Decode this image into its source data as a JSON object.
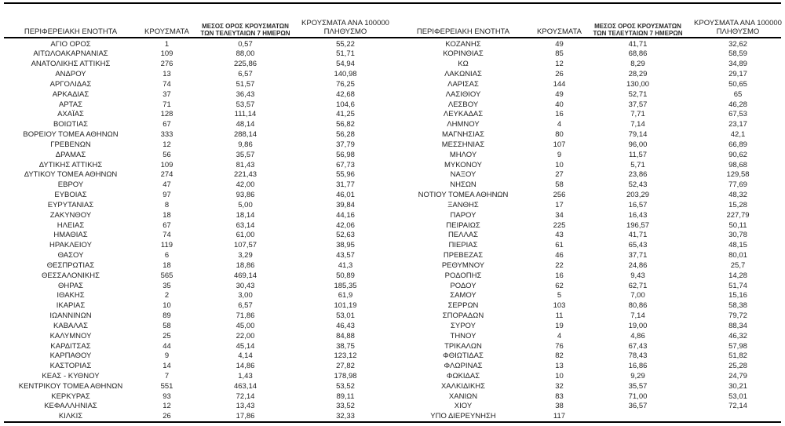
{
  "page": {
    "background": "#ffffff",
    "text_color": "#1f1f1f",
    "rule_color": "#000000"
  },
  "table_headers": {
    "region": "ΠΕΡΙΦΕΡΕΙΑΚΗ ΕΝΟΤΗΤΑ",
    "cases": "ΚΡΟΥΣΜΑΤΑ",
    "avg7_line1": "ΜΕΣΟΣ ΟΡΟΣ ΚΡΟΥΣΜΑΤΩΝ",
    "avg7_line2": "ΤΩΝ ΤΕΛΕΥΤΑΙΩΝ 7 ΗΜΕΡΩΝ",
    "per100k_line1": "ΚΡΟΥΣΜΑΤΑ ΑΝΑ 100000",
    "per100k_line2": "ΠΛΗΘΥΣΜΟ"
  },
  "left_table": {
    "rows": [
      [
        "ΑΓΙΟ ΟΡΟΣ",
        "1",
        "0,57",
        "55,22"
      ],
      [
        "ΑΙΤΩΛΟΑΚΑΡΝΑΝΙΑΣ",
        "109",
        "88,00",
        "51,71"
      ],
      [
        "ΑΝΑΤΟΛΙΚΗΣ ΑΤΤΙΚΗΣ",
        "276",
        "225,86",
        "54,94"
      ],
      [
        "ΑΝΔΡΟΥ",
        "13",
        "6,57",
        "140,98"
      ],
      [
        "ΑΡΓΟΛΙΔΑΣ",
        "74",
        "51,57",
        "76,25"
      ],
      [
        "ΑΡΚΑΔΙΑΣ",
        "37",
        "36,43",
        "42,68"
      ],
      [
        "ΑΡΤΑΣ",
        "71",
        "53,57",
        "104,6"
      ],
      [
        "ΑΧΑΪΑΣ",
        "128",
        "111,14",
        "41,25"
      ],
      [
        "ΒΟΙΩΤΙΑΣ",
        "67",
        "48,14",
        "56,82"
      ],
      [
        "ΒΟΡΕΙΟΥ ΤΟΜΕΑ ΑΘΗΝΩΝ",
        "333",
        "288,14",
        "56,28"
      ],
      [
        "ΓΡΕΒΕΝΩΝ",
        "12",
        "9,86",
        "37,79"
      ],
      [
        "ΔΡΑΜΑΣ",
        "56",
        "35,57",
        "56,98"
      ],
      [
        "ΔΥΤΙΚΗΣ ΑΤΤΙΚΗΣ",
        "109",
        "81,43",
        "67,73"
      ],
      [
        "ΔΥΤΙΚΟΥ ΤΟΜΕΑ ΑΘΗΝΩΝ",
        "274",
        "221,43",
        "55,96"
      ],
      [
        "ΕΒΡΟΥ",
        "47",
        "42,00",
        "31,77"
      ],
      [
        "ΕΥΒΟΙΑΣ",
        "97",
        "93,86",
        "46,01"
      ],
      [
        "ΕΥΡΥΤΑΝΙΑΣ",
        "8",
        "5,00",
        "39,84"
      ],
      [
        "ΖΑΚΥΝΘΟΥ",
        "18",
        "18,14",
        "44,16"
      ],
      [
        "ΗΛΕΙΑΣ",
        "67",
        "63,14",
        "42,06"
      ],
      [
        "ΗΜΑΘΙΑΣ",
        "74",
        "61,00",
        "52,63"
      ],
      [
        "ΗΡΑΚΛΕΙΟΥ",
        "119",
        "107,57",
        "38,95"
      ],
      [
        "ΘΑΣΟΥ",
        "6",
        "3,29",
        "43,57"
      ],
      [
        "ΘΕΣΠΡΩΤΙΑΣ",
        "18",
        "18,86",
        "41,3"
      ],
      [
        "ΘΕΣΣΑΛΟΝΙΚΗΣ",
        "565",
        "469,14",
        "50,89"
      ],
      [
        "ΘΗΡΑΣ",
        "35",
        "30,43",
        "185,35"
      ],
      [
        "ΙΘΑΚΗΣ",
        "2",
        "3,00",
        "61,9"
      ],
      [
        "ΙΚΑΡΙΑΣ",
        "10",
        "6,57",
        "101,19"
      ],
      [
        "ΙΩΑΝΝΙΝΩΝ",
        "89",
        "71,86",
        "53,01"
      ],
      [
        "ΚΑΒΑΛΑΣ",
        "58",
        "45,00",
        "46,43"
      ],
      [
        "ΚΑΛΥΜΝΟΥ",
        "25",
        "22,00",
        "84,88"
      ],
      [
        "ΚΑΡΔΙΤΣΑΣ",
        "44",
        "45,14",
        "38,75"
      ],
      [
        "ΚΑΡΠΑΘΟΥ",
        "9",
        "4,14",
        "123,12"
      ],
      [
        "ΚΑΣΤΟΡΙΑΣ",
        "14",
        "14,86",
        "27,82"
      ],
      [
        "ΚΕΑΣ - ΚΥΘΝΟΥ",
        "7",
        "1,43",
        "178,98"
      ],
      [
        "ΚΕΝΤΡΙΚΟΥ ΤΟΜΕΑ ΑΘΗΝΩΝ",
        "551",
        "463,14",
        "53,52"
      ],
      [
        "ΚΕΡΚΥΡΑΣ",
        "93",
        "72,14",
        "89,11"
      ],
      [
        "ΚΕΦΑΛΛΗΝΙΑΣ",
        "12",
        "13,43",
        "33,52"
      ],
      [
        "ΚΙΛΚΙΣ",
        "26",
        "17,86",
        "32,33"
      ]
    ]
  },
  "right_table": {
    "rows": [
      [
        "ΚΟΖΑΝΗΣ",
        "49",
        "41,71",
        "32,62"
      ],
      [
        "ΚΟΡΙΝΘΙΑΣ",
        "85",
        "68,86",
        "58,59"
      ],
      [
        "ΚΩ",
        "12",
        "8,29",
        "34,89"
      ],
      [
        "ΛΑΚΩΝΙΑΣ",
        "26",
        "28,29",
        "29,17"
      ],
      [
        "ΛΑΡΙΣΑΣ",
        "144",
        "130,00",
        "50,65"
      ],
      [
        "ΛΑΣΙΘΙΟΥ",
        "49",
        "52,71",
        "65"
      ],
      [
        "ΛΕΣΒΟΥ",
        "40",
        "37,57",
        "46,28"
      ],
      [
        "ΛΕΥΚΑΔΑΣ",
        "16",
        "7,71",
        "67,53"
      ],
      [
        "ΛΗΜΝΟΥ",
        "4",
        "7,14",
        "23,17"
      ],
      [
        "ΜΑΓΝΗΣΙΑΣ",
        "80",
        "79,14",
        "42,1"
      ],
      [
        "ΜΕΣΣΗΝΙΑΣ",
        "107",
        "96,00",
        "66,89"
      ],
      [
        "ΜΗΛΟΥ",
        "9",
        "11,57",
        "90,62"
      ],
      [
        "ΜΥΚΟΝΟΥ",
        "10",
        "5,71",
        "98,68"
      ],
      [
        "ΝΑΞΟΥ",
        "27",
        "23,86",
        "129,58"
      ],
      [
        "ΝΗΣΩΝ",
        "58",
        "52,43",
        "77,69"
      ],
      [
        "ΝΟΤΙΟΥ ΤΟΜΕΑ ΑΘΗΝΩΝ",
        "256",
        "203,29",
        "48,32"
      ],
      [
        "ΞΑΝΘΗΣ",
        "17",
        "16,57",
        "15,28"
      ],
      [
        "ΠΑΡΟΥ",
        "34",
        "16,43",
        "227,79"
      ],
      [
        "ΠΕΙΡΑΙΩΣ",
        "225",
        "196,57",
        "50,11"
      ],
      [
        "ΠΕΛΛΑΣ",
        "43",
        "41,71",
        "30,78"
      ],
      [
        "ΠΙΕΡΙΑΣ",
        "61",
        "65,43",
        "48,15"
      ],
      [
        "ΠΡΕΒΕΖΑΣ",
        "46",
        "37,71",
        "80,01"
      ],
      [
        "ΡΕΘΥΜΝΟΥ",
        "22",
        "24,86",
        "25,7"
      ],
      [
        "ΡΟΔΟΠΗΣ",
        "16",
        "9,43",
        "14,28"
      ],
      [
        "ΡΟΔΟΥ",
        "62",
        "62,71",
        "51,74"
      ],
      [
        "ΣΑΜΟΥ",
        "5",
        "7,00",
        "15,16"
      ],
      [
        "ΣΕΡΡΩΝ",
        "103",
        "80,86",
        "58,38"
      ],
      [
        "ΣΠΟΡΑΔΩΝ",
        "11",
        "7,14",
        "79,72"
      ],
      [
        "ΣΥΡΟΥ",
        "19",
        "19,00",
        "88,34"
      ],
      [
        "ΤΗΝΟΥ",
        "4",
        "4,86",
        "46,32"
      ],
      [
        "ΤΡΙΚΑΛΩΝ",
        "76",
        "67,43",
        "57,98"
      ],
      [
        "ΦΘΙΩΤΙΔΑΣ",
        "82",
        "78,43",
        "51,82"
      ],
      [
        "ΦΛΩΡΙΝΑΣ",
        "13",
        "16,86",
        "25,28"
      ],
      [
        "ΦΩΚΙΔΑΣ",
        "10",
        "9,29",
        "24,79"
      ],
      [
        "ΧΑΛΚΙΔΙΚΗΣ",
        "32",
        "35,57",
        "30,21"
      ],
      [
        "ΧΑΝΙΩΝ",
        "83",
        "71,00",
        "53,01"
      ],
      [
        "ΧΙΟΥ",
        "38",
        "36,57",
        "72,14"
      ],
      [
        "ΥΠΟ ΔΙΕΡΕΥΝΗΣΗ",
        "117",
        "",
        ""
      ]
    ]
  }
}
